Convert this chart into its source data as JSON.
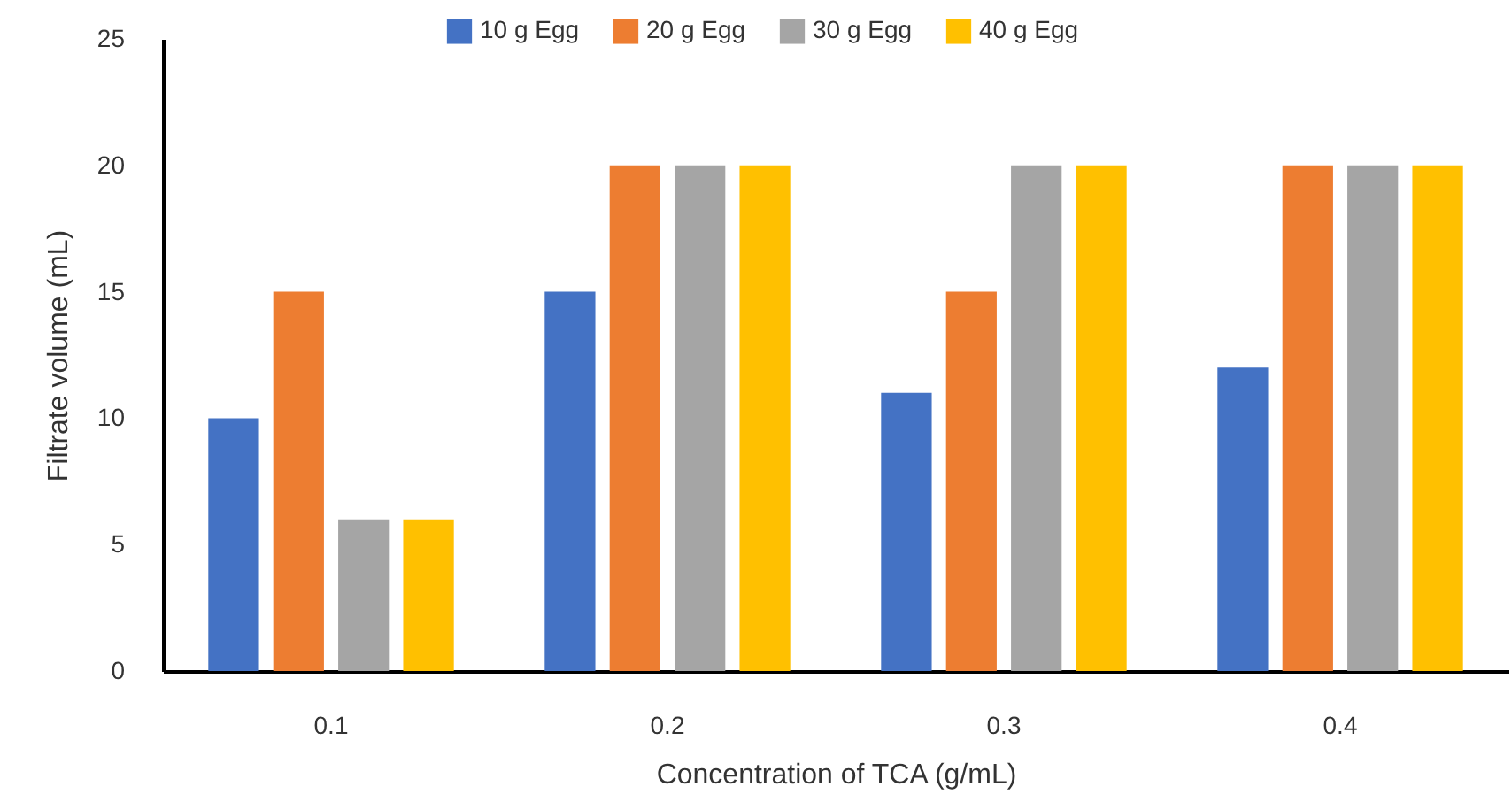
{
  "chart_data": {
    "type": "bar",
    "xlabel": "Concentration of TCA (g/mL)",
    "ylabel": "Filtrate volume (mL)",
    "categories": [
      "0.1",
      "0.2",
      "0.3",
      "0.4"
    ],
    "series": [
      {
        "name": "10 g Egg",
        "color": "#4472c4",
        "values": [
          10,
          15,
          11,
          12
        ]
      },
      {
        "name": "20 g Egg",
        "color": "#ed7d31",
        "values": [
          15,
          20,
          15,
          20
        ]
      },
      {
        "name": "30 g Egg",
        "color": "#a5a5a5",
        "values": [
          6,
          20,
          20,
          20
        ]
      },
      {
        "name": "40 g Egg",
        "color": "#ffc000",
        "values": [
          6,
          20,
          20,
          20
        ]
      }
    ],
    "ylim": [
      0,
      25
    ],
    "yticks": [
      0,
      5,
      10,
      15,
      20,
      25
    ],
    "grid": false,
    "legend": "top"
  }
}
